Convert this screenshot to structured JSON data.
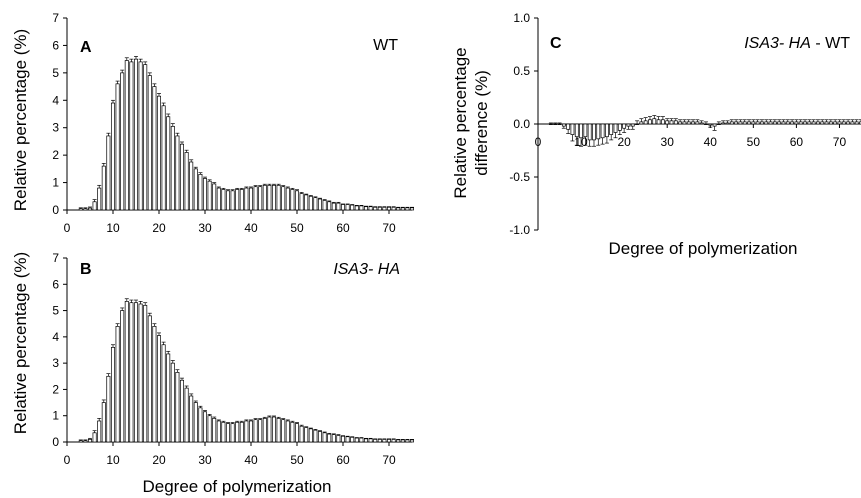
{
  "chart_data": [
    {
      "panel": "A",
      "type": "bar",
      "panel_label": "WT",
      "ylabel": "Relative percentage (%)",
      "xlabel": "",
      "x_ticks": [
        "0",
        "10",
        "20",
        "30",
        "40",
        "50",
        "60",
        "70"
      ],
      "y_ticks": [
        "0",
        "1",
        "2",
        "3",
        "4",
        "5",
        "6",
        "7"
      ],
      "xlim": [
        0,
        75
      ],
      "ylim": [
        0,
        7
      ],
      "grid": false,
      "error_bars": true,
      "x": [
        3,
        4,
        5,
        6,
        7,
        8,
        9,
        10,
        11,
        12,
        13,
        14,
        15,
        16,
        17,
        18,
        19,
        20,
        21,
        22,
        23,
        24,
        25,
        26,
        27,
        28,
        29,
        30,
        31,
        32,
        33,
        34,
        35,
        36,
        37,
        38,
        39,
        40,
        41,
        42,
        43,
        44,
        45,
        46,
        47,
        48,
        49,
        50,
        51,
        52,
        53,
        54,
        55,
        56,
        57,
        58,
        59,
        60,
        61,
        62,
        63,
        64,
        65,
        66,
        67,
        68,
        69,
        70,
        71,
        72,
        73,
        74,
        75
      ],
      "values": [
        0.05,
        0.05,
        0.07,
        0.3,
        0.8,
        1.6,
        2.7,
        3.9,
        4.6,
        5.0,
        5.45,
        5.4,
        5.5,
        5.4,
        5.3,
        4.9,
        4.5,
        4.15,
        3.8,
        3.4,
        3.05,
        2.7,
        2.4,
        2.1,
        1.75,
        1.5,
        1.3,
        1.15,
        1.05,
        0.95,
        0.8,
        0.75,
        0.7,
        0.7,
        0.75,
        0.75,
        0.8,
        0.8,
        0.85,
        0.85,
        0.9,
        0.9,
        0.9,
        0.9,
        0.85,
        0.8,
        0.75,
        0.7,
        0.6,
        0.55,
        0.5,
        0.45,
        0.4,
        0.35,
        0.3,
        0.25,
        0.25,
        0.2,
        0.2,
        0.18,
        0.15,
        0.15,
        0.12,
        0.12,
        0.1,
        0.1,
        0.1,
        0.1,
        0.1,
        0.08,
        0.08,
        0.08,
        0.08
      ],
      "errors": [
        0.03,
        0.03,
        0.04,
        0.08,
        0.1,
        0.1,
        0.1,
        0.1,
        0.1,
        0.1,
        0.1,
        0.1,
        0.1,
        0.1,
        0.1,
        0.1,
        0.1,
        0.1,
        0.1,
        0.1,
        0.1,
        0.1,
        0.08,
        0.08,
        0.08,
        0.06,
        0.06,
        0.05,
        0.05,
        0.05,
        0.04,
        0.04,
        0.04,
        0.04,
        0.04,
        0.04,
        0.04,
        0.04,
        0.04,
        0.04,
        0.04,
        0.04,
        0.04,
        0.04,
        0.04,
        0.04,
        0.04,
        0.04,
        0.04,
        0.03,
        0.03,
        0.03,
        0.03,
        0.03,
        0.03,
        0.03,
        0.03,
        0.02,
        0.02,
        0.02,
        0.02,
        0.02,
        0.02,
        0.02,
        0.02,
        0.02,
        0.02,
        0.02,
        0.02,
        0.02,
        0.02,
        0.02,
        0.02
      ]
    },
    {
      "panel": "B",
      "type": "bar",
      "panel_label": "ISA3- HA",
      "ylabel": "Relative percentage (%)",
      "xlabel": "Degree of polymerization",
      "x_ticks": [
        "0",
        "10",
        "20",
        "30",
        "40",
        "50",
        "60",
        "70"
      ],
      "y_ticks": [
        "0",
        "1",
        "2",
        "3",
        "4",
        "5",
        "6",
        "7"
      ],
      "xlim": [
        0,
        75
      ],
      "ylim": [
        0,
        7
      ],
      "grid": false,
      "error_bars": true,
      "x": [
        3,
        4,
        5,
        6,
        7,
        8,
        9,
        10,
        11,
        12,
        13,
        14,
        15,
        16,
        17,
        18,
        19,
        20,
        21,
        22,
        23,
        24,
        25,
        26,
        27,
        28,
        29,
        30,
        31,
        32,
        33,
        34,
        35,
        36,
        37,
        38,
        39,
        40,
        41,
        42,
        43,
        44,
        45,
        46,
        47,
        48,
        49,
        50,
        51,
        52,
        53,
        54,
        55,
        56,
        57,
        58,
        59,
        60,
        61,
        62,
        63,
        64,
        65,
        66,
        67,
        68,
        69,
        70,
        71,
        72,
        73,
        74,
        75
      ],
      "values": [
        0.05,
        0.05,
        0.1,
        0.35,
        0.8,
        1.5,
        2.5,
        3.6,
        4.4,
        5.0,
        5.35,
        5.3,
        5.3,
        5.25,
        5.2,
        4.8,
        4.4,
        4.05,
        3.7,
        3.35,
        3.0,
        2.65,
        2.35,
        2.05,
        1.75,
        1.5,
        1.3,
        1.15,
        1.0,
        0.9,
        0.8,
        0.75,
        0.7,
        0.7,
        0.75,
        0.75,
        0.8,
        0.8,
        0.85,
        0.85,
        0.9,
        0.95,
        0.95,
        0.9,
        0.85,
        0.8,
        0.75,
        0.7,
        0.6,
        0.55,
        0.5,
        0.45,
        0.4,
        0.35,
        0.3,
        0.28,
        0.25,
        0.22,
        0.2,
        0.18,
        0.15,
        0.15,
        0.12,
        0.12,
        0.1,
        0.1,
        0.1,
        0.1,
        0.1,
        0.08,
        0.08,
        0.08,
        0.08
      ],
      "errors": [
        0.03,
        0.03,
        0.04,
        0.08,
        0.1,
        0.1,
        0.1,
        0.1,
        0.1,
        0.1,
        0.1,
        0.1,
        0.1,
        0.1,
        0.1,
        0.1,
        0.1,
        0.1,
        0.1,
        0.1,
        0.1,
        0.1,
        0.08,
        0.08,
        0.08,
        0.06,
        0.06,
        0.05,
        0.05,
        0.05,
        0.04,
        0.04,
        0.04,
        0.04,
        0.04,
        0.04,
        0.04,
        0.04,
        0.04,
        0.04,
        0.04,
        0.04,
        0.04,
        0.04,
        0.04,
        0.04,
        0.04,
        0.04,
        0.04,
        0.03,
        0.03,
        0.03,
        0.03,
        0.03,
        0.03,
        0.03,
        0.03,
        0.02,
        0.02,
        0.02,
        0.02,
        0.02,
        0.02,
        0.02,
        0.02,
        0.02,
        0.02,
        0.02,
        0.02,
        0.02,
        0.02,
        0.02,
        0.02
      ]
    },
    {
      "panel": "C",
      "type": "bar",
      "panel_label": "ISA3- HA - WT",
      "ylabel": "Relative percentage difference (%)",
      "xlabel": "Degree of polymerization",
      "x_ticks": [
        "0",
        "10",
        "20",
        "30",
        "40",
        "50",
        "60",
        "70"
      ],
      "y_ticks": [
        "-1.0",
        "-0.5",
        "0.0",
        "0.5",
        "1.0"
      ],
      "xlim": [
        0,
        75
      ],
      "ylim": [
        -1.0,
        1.0
      ],
      "grid": false,
      "error_bars": true,
      "x": [
        3,
        4,
        5,
        6,
        7,
        8,
        9,
        10,
        11,
        12,
        13,
        14,
        15,
        16,
        17,
        18,
        19,
        20,
        21,
        22,
        23,
        24,
        25,
        26,
        27,
        28,
        29,
        30,
        31,
        32,
        33,
        34,
        35,
        36,
        37,
        38,
        39,
        40,
        41,
        42,
        43,
        44,
        45,
        46,
        47,
        48,
        49,
        50,
        51,
        52,
        53,
        54,
        55,
        56,
        57,
        58,
        59,
        60,
        61,
        62,
        63,
        64,
        65,
        66,
        67,
        68,
        69,
        70,
        71,
        72,
        73,
        74,
        75
      ],
      "values": [
        0.0,
        0.0,
        0.0,
        -0.02,
        -0.05,
        -0.1,
        -0.12,
        -0.13,
        -0.12,
        -0.15,
        -0.15,
        -0.14,
        -0.13,
        -0.12,
        -0.1,
        -0.08,
        -0.06,
        -0.04,
        -0.02,
        -0.02,
        0.0,
        0.02,
        0.03,
        0.04,
        0.05,
        0.04,
        0.04,
        0.03,
        0.03,
        0.03,
        0.02,
        0.02,
        0.02,
        0.02,
        0.02,
        0.01,
        0.0,
        -0.01,
        -0.02,
        0.0,
        0.01,
        0.01,
        0.02,
        0.02,
        0.02,
        0.02,
        0.02,
        0.02,
        0.02,
        0.02,
        0.02,
        0.02,
        0.02,
        0.02,
        0.02,
        0.02,
        0.02,
        0.02,
        0.02,
        0.02,
        0.02,
        0.02,
        0.02,
        0.02,
        0.02,
        0.02,
        0.02,
        0.02,
        0.02,
        0.02,
        0.02,
        0.02,
        0.02
      ],
      "errors": [
        0.01,
        0.01,
        0.01,
        0.02,
        0.04,
        0.06,
        0.08,
        0.08,
        0.08,
        0.06,
        0.06,
        0.06,
        0.06,
        0.06,
        0.05,
        0.05,
        0.04,
        0.04,
        0.03,
        0.03,
        0.03,
        0.03,
        0.03,
        0.03,
        0.03,
        0.03,
        0.03,
        0.02,
        0.02,
        0.02,
        0.02,
        0.02,
        0.02,
        0.02,
        0.02,
        0.02,
        0.02,
        0.02,
        0.04,
        0.02,
        0.02,
        0.02,
        0.02,
        0.02,
        0.02,
        0.02,
        0.02,
        0.02,
        0.02,
        0.02,
        0.02,
        0.02,
        0.02,
        0.02,
        0.02,
        0.02,
        0.02,
        0.02,
        0.02,
        0.02,
        0.02,
        0.02,
        0.02,
        0.02,
        0.02,
        0.02,
        0.02,
        0.02,
        0.02,
        0.02,
        0.02,
        0.02,
        0.02
      ]
    }
  ],
  "colors": {
    "bar_stroke": "#000000",
    "bar_fill": "#ffffff",
    "axis": "#000000"
  }
}
